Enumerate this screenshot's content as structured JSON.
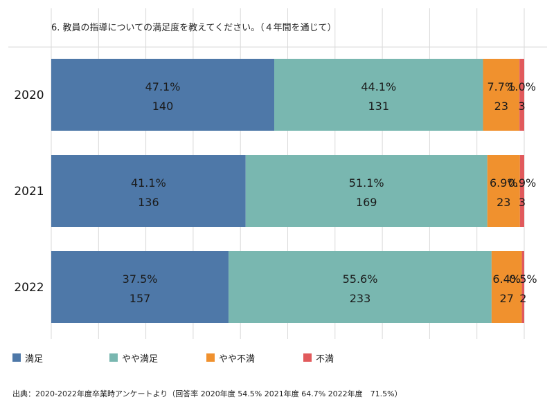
{
  "title": "6. 教員の指導についての満足度を教えてください。（４年間を通じて）",
  "source": "出典：2020-2022年度卒業時アンケートより（回答率 2020年度 54.5% 2021年度 64.7% 2022年度　71.5%）",
  "legend_position": "bottom-left",
  "colors": {
    "manzoku": "#4e78a8",
    "yaya_manzoku": "#79b7b0",
    "yaya_fuman": "#f0912e",
    "fuman": "#e15a5c",
    "grid": "#d9d9d9"
  },
  "chart_data": {
    "type": "bar",
    "orientation": "horizontal",
    "stacked": true,
    "percent_stacked": true,
    "title": "6. 教員の指導についての満足度を教えてください。（４年間を通じて）",
    "categories": [
      "2020",
      "2021",
      "2022"
    ],
    "xlim": [
      0,
      100
    ],
    "grid": true,
    "series": [
      {
        "name": "満足",
        "color": "#4e78a8",
        "percent_labels": [
          "47.1%",
          "41.1%",
          "37.5%"
        ],
        "percent": [
          47.1,
          41.1,
          37.5
        ],
        "count": [
          140,
          136,
          157
        ]
      },
      {
        "name": "やや満足",
        "color": "#79b7b0",
        "percent_labels": [
          "44.1%",
          "51.1%",
          "55.6%"
        ],
        "percent": [
          44.1,
          51.1,
          55.6
        ],
        "count": [
          131,
          169,
          233
        ]
      },
      {
        "name": "やや不満",
        "color": "#f0912e",
        "percent_labels": [
          "7.7%",
          "6.9%",
          "6.4%"
        ],
        "percent": [
          7.7,
          6.9,
          6.4
        ],
        "count": [
          23,
          23,
          27
        ]
      },
      {
        "name": "不満",
        "color": "#e15a5c",
        "percent_labels": [
          "1.0%",
          "0.9%",
          "0.5%"
        ],
        "percent": [
          1.0,
          0.9,
          0.5
        ],
        "count": [
          3,
          3,
          2
        ]
      }
    ]
  }
}
